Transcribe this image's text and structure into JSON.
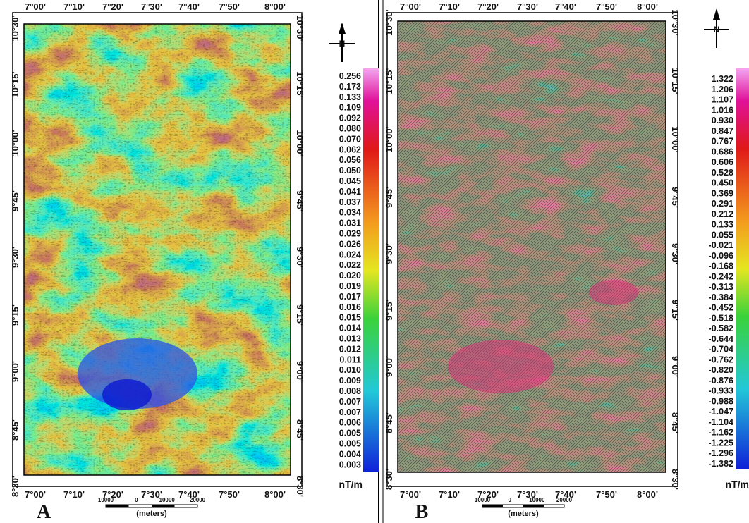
{
  "panels": [
    {
      "label": "A",
      "north": "N",
      "lon_labels": [
        "7°00'",
        "7°10'",
        "7°20'",
        "7°30'",
        "7°40'",
        "7°50'",
        "8°00'"
      ],
      "lat_labels": [
        "10°30'",
        "10°15'",
        "10°00'",
        "9°45'",
        "9°30'",
        "9°15'",
        "9°00'",
        "8°45'",
        "8°30'"
      ],
      "scale_labels": [
        "10000",
        "0",
        "10000",
        "20000"
      ],
      "scale_unit": "(meters)",
      "colorbar": {
        "labels": [
          "0.256",
          "0.173",
          "0.133",
          "0.109",
          "0.092",
          "0.080",
          "0.070",
          "0.062",
          "0.056",
          "0.050",
          "0.045",
          "0.041",
          "0.037",
          "0.034",
          "0.031",
          "0.029",
          "0.026",
          "0.024",
          "0.022",
          "0.020",
          "0.019",
          "0.017",
          "0.016",
          "0.015",
          "0.014",
          "0.013",
          "0.012",
          "0.011",
          "0.010",
          "0.009",
          "0.008",
          "0.007",
          "0.007",
          "0.006",
          "0.005",
          "0.005",
          "0.004",
          "0.003"
        ],
        "unit": "nT/m"
      }
    },
    {
      "label": "B",
      "north": "N",
      "lon_labels": [
        "7°00'",
        "7°10'",
        "7°20'",
        "7°30'",
        "7°40'",
        "7°50'",
        "8°00'"
      ],
      "lat_labels": [
        "10°30'",
        "10°15'",
        "10°00'",
        "9°45'",
        "9°30'",
        "9°15'",
        "9°00'",
        "8°45'",
        "8°30'"
      ],
      "scale_labels": [
        "10000",
        "0",
        "10000",
        "20000"
      ],
      "scale_unit": "(meters)",
      "colorbar": {
        "labels": [
          "1.322",
          "1.206",
          "1.107",
          "1.016",
          "0.930",
          "0.847",
          "0.767",
          "0.686",
          "0.606",
          "0.528",
          "0.450",
          "0.369",
          "0.291",
          "0.212",
          "0.133",
          "0.055",
          "-0.021",
          "-0.096",
          "-0.168",
          "-0.242",
          "-0.313",
          "-0.384",
          "-0.452",
          "-0.518",
          "-0.582",
          "-0.644",
          "-0.704",
          "-0.762",
          "-0.820",
          "-0.876",
          "-0.933",
          "-0.988",
          "-1.047",
          "-1.104",
          "-1.162",
          "-1.225",
          "-1.296",
          "-1.382"
        ],
        "unit": "nT/m"
      }
    }
  ]
}
